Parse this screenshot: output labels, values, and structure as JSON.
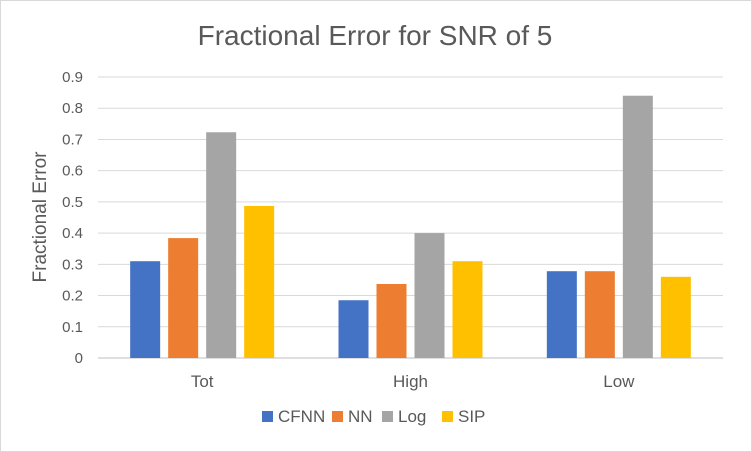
{
  "chart_data": {
    "type": "bar",
    "title": "Fractional Error for SNR of 5",
    "xlabel": "",
    "ylabel": "Fractional Error",
    "ylim": [
      0,
      0.9
    ],
    "yticks": [
      "0",
      "0.1",
      "0.2",
      "0.3",
      "0.4",
      "0.5",
      "0.6",
      "0.7",
      "0.8",
      "0.9"
    ],
    "grid": true,
    "legend_position": "bottom",
    "categories": [
      "Tot",
      "High",
      "Low"
    ],
    "series": [
      {
        "name": "CFNN",
        "color": "#4472c4",
        "values": [
          0.31,
          0.185,
          0.278
        ]
      },
      {
        "name": "NN",
        "color": "#ed7d31",
        "values": [
          0.384,
          0.237,
          0.278
        ]
      },
      {
        "name": "Log",
        "color": "#a5a5a5",
        "values": [
          0.723,
          0.4,
          0.84
        ]
      },
      {
        "name": "SIP",
        "color": "#ffc000",
        "values": [
          0.487,
          0.31,
          0.26
        ]
      }
    ]
  }
}
